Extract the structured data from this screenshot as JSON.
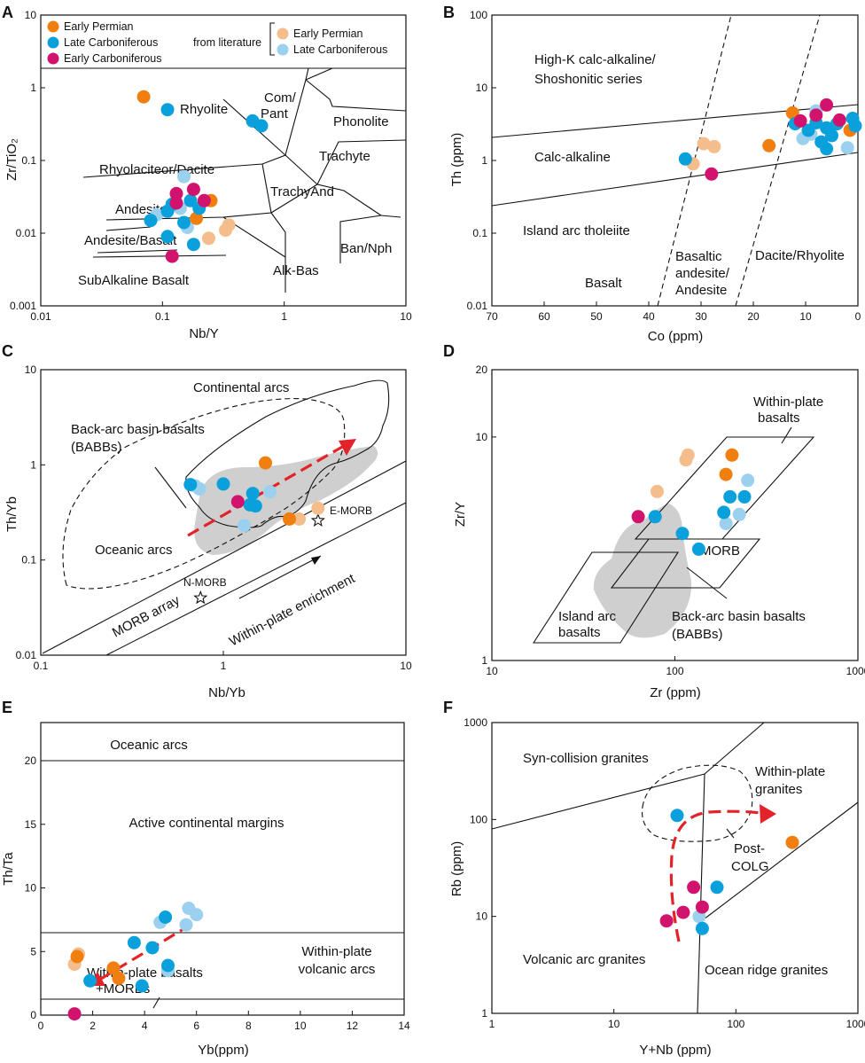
{
  "colors": {
    "early_permian": "#f07f10",
    "late_carboniferous": "#0aa0dc",
    "early_carboniferous": "#d1136e",
    "lit_early_permian": "#f5bd8c",
    "lit_late_carboniferous": "#9bd0ee",
    "arrow": "#e3232a",
    "field_gray": "#cfcfcf"
  },
  "legend": {
    "early_permian": "Early Permian",
    "late_carboniferous": "Late Carboniferous",
    "early_carboniferous": "Early Carboniferous",
    "from_literature": "from literature",
    "lit_early_permian": "Early Permian",
    "lit_late_carboniferous": "Late Carboniferous"
  },
  "chart_data": [
    {
      "panel": "A",
      "type": "scatter",
      "xscale": "log",
      "yscale": "log",
      "xlim": [
        0.01,
        10
      ],
      "ylim": [
        0.001,
        10
      ],
      "xlabel": "Nb/Y",
      "ylabel": "Zr/TiO₂",
      "xticks": [
        0.01,
        0.1,
        1,
        10
      ],
      "xtick_labels": [
        "0.01",
        "0.1",
        "1",
        "10"
      ],
      "yticks": [
        0.001,
        0.01,
        0.1,
        1,
        10
      ],
      "ytick_labels": [
        "0.001",
        "0.01",
        "0.1",
        "1",
        "10"
      ],
      "regions": [
        "Rhyolite",
        "Com/",
        "Pant",
        "Phonolite",
        "Trachyte",
        "Rhyolaciteor/Dacite",
        "TrachyAnd",
        "Andesite",
        "Andesite/Basalt",
        "Ban/Nph",
        "Alk-Bas",
        "SubAlkaline Basalt"
      ],
      "series": [
        {
          "name": "Early Permian",
          "points": [
            [
              0.07,
              0.75
            ],
            [
              0.25,
              0.028
            ],
            [
              0.19,
              0.016
            ]
          ]
        },
        {
          "name": "Late Carboniferous",
          "points": [
            [
              0.11,
              0.5
            ],
            [
              0.55,
              0.35
            ],
            [
              0.65,
              0.3
            ],
            [
              0.08,
              0.015
            ],
            [
              0.11,
              0.02
            ],
            [
              0.12,
              0.025
            ],
            [
              0.15,
              0.014
            ],
            [
              0.17,
              0.028
            ],
            [
              0.18,
              0.007
            ],
            [
              0.11,
              0.009
            ],
            [
              0.2,
              0.022
            ]
          ]
        },
        {
          "name": "Early Carboniferous",
          "points": [
            [
              0.13,
              0.035
            ],
            [
              0.18,
              0.04
            ],
            [
              0.13,
              0.026
            ],
            [
              0.22,
              0.028
            ],
            [
              0.12,
              0.0048
            ]
          ]
        },
        {
          "name": "Early Permian (literature)",
          "points": [
            [
              0.24,
              0.0085
            ],
            [
              0.33,
              0.011
            ],
            [
              0.35,
              0.013
            ]
          ]
        },
        {
          "name": "Late Carboniferous (literature)",
          "points": [
            [
              0.15,
              0.06
            ],
            [
              0.09,
              0.018
            ],
            [
              0.14,
              0.022
            ],
            [
              0.16,
              0.012
            ]
          ]
        }
      ]
    },
    {
      "panel": "B",
      "type": "scatter",
      "xscale": "linear",
      "yscale": "log",
      "xlim": [
        70,
        0
      ],
      "ylim": [
        0.01,
        100
      ],
      "xlabel": "Co (ppm)",
      "ylabel": "Th (ppm)",
      "xticks": [
        70,
        60,
        50,
        40,
        30,
        20,
        10,
        0
      ],
      "xtick_labels": [
        "70",
        "60",
        "50",
        "40",
        "30",
        "20",
        "10",
        "0"
      ],
      "yticks": [
        0.01,
        0.1,
        1,
        10,
        100
      ],
      "ytick_labels": [
        "0.01",
        "0.1",
        "1",
        "10",
        "100"
      ],
      "regions": [
        "High-K calc-alkaline/",
        "Shoshonitic series",
        "Calc-alkaline",
        "Island arc tholeiite",
        "Basalt",
        "Basaltic",
        "andesite/",
        "Andesite",
        "Dacite/Rhyolite"
      ],
      "series": [
        {
          "name": "Early Permian",
          "points": [
            [
              12.5,
              4.5
            ],
            [
              17,
              1.6
            ],
            [
              1.5,
              2.6
            ]
          ]
        },
        {
          "name": "Late Carboniferous",
          "points": [
            [
              33,
              1.05
            ],
            [
              12,
              3.2
            ],
            [
              8,
              3.3
            ],
            [
              6,
              2.8
            ],
            [
              5,
              2.2
            ],
            [
              7,
              1.8
            ],
            [
              9.5,
              2.6
            ],
            [
              1,
              3.8
            ],
            [
              0.5,
              3.0
            ],
            [
              6,
              1.45
            ],
            [
              4,
              3.2
            ]
          ]
        },
        {
          "name": "Early Carboniferous",
          "points": [
            [
              28,
              0.65
            ],
            [
              6,
              5.8
            ],
            [
              8,
              4.2
            ],
            [
              11,
              3.5
            ],
            [
              3.5,
              3.6
            ]
          ]
        },
        {
          "name": "Early Permian (literature)",
          "points": [
            [
              29.5,
              1.7
            ],
            [
              27.5,
              1.55
            ],
            [
              31.5,
              0.9
            ]
          ]
        },
        {
          "name": "Late Carboniferous (literature)",
          "points": [
            [
              8,
              4.8
            ],
            [
              10.5,
              2.0
            ],
            [
              2,
              1.5
            ],
            [
              9,
              2.3
            ]
          ]
        }
      ]
    },
    {
      "panel": "C",
      "type": "scatter",
      "xscale": "log",
      "yscale": "log",
      "xlim": [
        0.1,
        10
      ],
      "ylim": [
        0.01,
        10
      ],
      "xlabel": "Nb/Yb",
      "ylabel": "Th/Yb",
      "xticks": [
        0.1,
        1,
        10
      ],
      "xtick_labels": [
        "0.1",
        "1",
        "10"
      ],
      "yticks": [
        0.01,
        0.1,
        1,
        10
      ],
      "ytick_labels": [
        "0.01",
        "0.1",
        "1",
        "10"
      ],
      "regions": [
        "Continental arcs",
        "Back-arc basin basalts",
        "(BABBs)",
        "Oceanic arcs",
        "E-MORB",
        "N-MORB",
        "MORB array",
        "Within-plate enrichment"
      ],
      "reference_points": [
        {
          "name": "E-MORB",
          "x": 3.3,
          "y": 0.26
        },
        {
          "name": "N-MORB",
          "x": 0.75,
          "y": 0.04
        }
      ],
      "series": [
        {
          "name": "Early Permian",
          "points": [
            [
              1.7,
              1.05
            ],
            [
              2.3,
              0.27
            ]
          ]
        },
        {
          "name": "Late Carboniferous",
          "points": [
            [
              0.66,
              0.62
            ],
            [
              1.0,
              0.63
            ],
            [
              1.45,
              0.5
            ],
            [
              1.5,
              0.37
            ],
            [
              1.4,
              0.38
            ]
          ]
        },
        {
          "name": "Early Carboniferous",
          "points": [
            [
              1.2,
              0.41
            ]
          ]
        },
        {
          "name": "Early Permian (literature)",
          "points": [
            [
              3.3,
              0.35
            ],
            [
              2.6,
              0.27
            ]
          ]
        },
        {
          "name": "Late Carboniferous (literature)",
          "points": [
            [
              0.74,
              0.56
            ],
            [
              1.8,
              0.52
            ],
            [
              1.3,
              0.23
            ],
            [
              0.7,
              0.6
            ]
          ]
        }
      ]
    },
    {
      "panel": "D",
      "type": "scatter",
      "xscale": "log",
      "yscale": "log",
      "xlim": [
        10,
        1000
      ],
      "ylim": [
        1,
        20
      ],
      "xlabel": "Zr (ppm)",
      "ylabel": "Zr/Y",
      "xticks": [
        10,
        100,
        1000
      ],
      "xtick_labels": [
        "10",
        "100",
        "1000"
      ],
      "yticks": [
        1,
        10,
        20
      ],
      "ytick_labels": [
        "1",
        "10",
        "20"
      ],
      "regions": [
        "Within-plate",
        "basalts",
        "MORB",
        "Island arc",
        "basalts",
        "Back-arc basin basalts",
        "(BABBs)"
      ],
      "series": [
        {
          "name": "Early Permian",
          "points": [
            [
              190,
              6.8
            ],
            [
              205,
              8.3
            ]
          ]
        },
        {
          "name": "Late Carboniferous",
          "points": [
            [
              78,
              4.4
            ],
            [
              110,
              3.7
            ],
            [
              200,
              5.4
            ],
            [
              240,
              5.4
            ],
            [
              185,
              4.6
            ],
            [
              135,
              3.15
            ]
          ]
        },
        {
          "name": "Early Carboniferous",
          "points": [
            [
              63,
              4.4
            ]
          ]
        },
        {
          "name": "Early Permian (literature)",
          "points": [
            [
              115,
              7.9
            ],
            [
              118,
              8.3
            ],
            [
              80,
              5.7
            ]
          ]
        },
        {
          "name": "Late Carboniferous (literature)",
          "points": [
            [
              250,
              6.4
            ],
            [
              225,
              4.5
            ],
            [
              190,
              4.1
            ]
          ]
        }
      ]
    },
    {
      "panel": "E",
      "type": "scatter",
      "xscale": "linear",
      "yscale": "linear",
      "xlim": [
        0,
        14
      ],
      "ylim": [
        0,
        23
      ],
      "xlabel": "Yb(ppm)",
      "ylabel": "Th/Ta",
      "xticks": [
        0,
        2,
        4,
        6,
        8,
        10,
        12,
        14
      ],
      "xtick_labels": [
        "0",
        "2",
        "4",
        "6",
        "8",
        "10",
        "12",
        "14"
      ],
      "yticks": [
        0,
        5,
        10,
        15,
        20
      ],
      "ytick_labels": [
        "0",
        "5",
        "10",
        "15",
        "20"
      ],
      "regions": [
        "Oceanic arcs",
        "Active continental margins",
        "Within-plate",
        "volcanic arcs",
        "Within-plate basalts",
        "+MORBs"
      ],
      "series": [
        {
          "name": "Early Permian",
          "points": [
            [
              1.4,
              4.6
            ],
            [
              2.8,
              3.7
            ],
            [
              3.0,
              2.9
            ]
          ]
        },
        {
          "name": "Late Carboniferous",
          "points": [
            [
              1.9,
              2.7
            ],
            [
              3.6,
              5.7
            ],
            [
              4.3,
              5.3
            ],
            [
              4.8,
              7.7
            ],
            [
              4.9,
              3.9
            ],
            [
              3.9,
              2.3
            ]
          ]
        },
        {
          "name": "Early Carboniferous",
          "points": [
            [
              1.3,
              0.1
            ]
          ]
        },
        {
          "name": "Early Permian (literature)",
          "points": [
            [
              1.3,
              4.0
            ],
            [
              1.45,
              4.8
            ]
          ]
        },
        {
          "name": "Late Carboniferous (literature)",
          "points": [
            [
              4.6,
              7.3
            ],
            [
              5.6,
              7.1
            ],
            [
              5.7,
              8.4
            ],
            [
              6.0,
              7.9
            ],
            [
              4.9,
              3.5
            ]
          ]
        }
      ]
    },
    {
      "panel": "F",
      "type": "scatter",
      "xscale": "log",
      "yscale": "log",
      "xlim": [
        1,
        1000
      ],
      "ylim": [
        1,
        1000
      ],
      "xlabel": "Y+Nb (ppm)",
      "ylabel": "Rb (ppm)",
      "xticks": [
        1,
        10,
        100,
        1000
      ],
      "xtick_labels": [
        "1",
        "10",
        "100",
        "1000"
      ],
      "yticks": [
        1,
        10,
        100,
        1000
      ],
      "ytick_labels": [
        "1",
        "10",
        "100",
        "1000"
      ],
      "regions": [
        "Syn-collision granites",
        "Within-plate",
        "granites",
        "Post-",
        "COLG",
        "Volcanic arc granites",
        "Ocean ridge granites"
      ],
      "series": [
        {
          "name": "Early Permian",
          "points": [
            [
              290,
              58
            ]
          ]
        },
        {
          "name": "Late Carboniferous",
          "points": [
            [
              33,
              110
            ],
            [
              70,
              20
            ],
            [
              53,
              7.5
            ]
          ]
        },
        {
          "name": "Early Carboniferous",
          "points": [
            [
              45,
              20
            ],
            [
              37,
              11
            ],
            [
              27,
              9
            ],
            [
              53,
              12.5
            ]
          ]
        },
        {
          "name": "Early Permian (literature)",
          "points": []
        },
        {
          "name": "Late Carboniferous (literature)",
          "points": [
            [
              50,
              10
            ]
          ]
        }
      ]
    }
  ]
}
